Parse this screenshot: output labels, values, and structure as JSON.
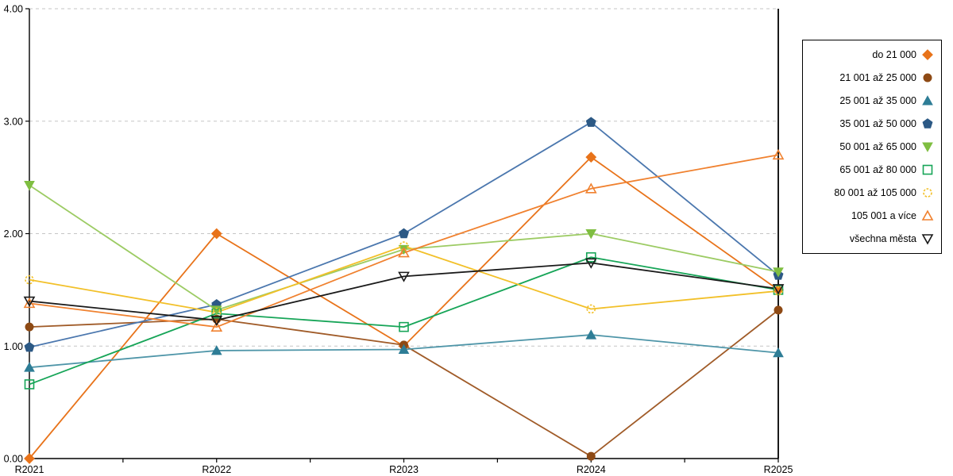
{
  "chart_data": {
    "type": "line",
    "title": "",
    "xlabel": "",
    "ylabel": "",
    "x_categories": [
      "R2021",
      "R2022",
      "R2023",
      "R2024",
      "R2025"
    ],
    "ylim": [
      0,
      4
    ],
    "ytick_labels": [
      "0.00",
      "1.00",
      "2.00",
      "3.00",
      "4.00"
    ],
    "grid": "horizontal-dashed",
    "grid_color": "#c6c6c6",
    "axis_color": "#000000",
    "legend_position": "right-outside",
    "series": [
      {
        "name": "do 21 000",
        "color": "#e8731a",
        "marker_color": "#e8731a",
        "marker": "diamond",
        "fill": true,
        "values": [
          0.0,
          2.0,
          1.0,
          2.68,
          1.5
        ]
      },
      {
        "name": "21 001 až 25 000",
        "color": "#a05b28",
        "marker_color": "#8e4a15",
        "marker": "circle",
        "fill": true,
        "values": [
          1.17,
          1.24,
          1.01,
          0.02,
          1.32
        ]
      },
      {
        "name": "25 001 až 35 000",
        "color": "#4e95a8",
        "marker_color": "#2e7d96",
        "marker": "triangle-up",
        "fill": true,
        "values": [
          0.81,
          0.96,
          0.97,
          1.1,
          0.94
        ]
      },
      {
        "name": "35 001 až 50 000",
        "color": "#4b77ae",
        "marker_color": "#2c5985",
        "marker": "pentagon",
        "fill": true,
        "values": [
          0.99,
          1.37,
          2.0,
          2.99,
          1.63
        ]
      },
      {
        "name": "50 001 až 65 000",
        "color": "#9ccb63",
        "marker_color": "#7fbe41",
        "marker": "triangle-down",
        "fill": true,
        "values": [
          2.43,
          1.32,
          1.86,
          2.0,
          1.66
        ]
      },
      {
        "name": "65 001 až 80 000",
        "color": "#17a558",
        "marker_color": "#17a558",
        "marker": "square",
        "fill": false,
        "values": [
          0.66,
          1.29,
          1.17,
          1.79,
          1.5
        ]
      },
      {
        "name": "80 001 až 105 000",
        "color": "#f2c029",
        "marker_color": "#f2c029",
        "marker": "circle",
        "fill": false,
        "dashed_marker": true,
        "values": [
          1.59,
          1.3,
          1.89,
          1.33,
          1.49
        ]
      },
      {
        "name": "105 001 a více",
        "color": "#f0812f",
        "marker_color": "#f0812f",
        "marker": "triangle-up",
        "fill": false,
        "values": [
          1.38,
          1.17,
          1.83,
          2.4,
          2.7
        ]
      },
      {
        "name": "všechna města",
        "color": "#1a1a1a",
        "marker_color": "#1a1a1a",
        "marker": "triangle-down",
        "fill": false,
        "values": [
          1.4,
          1.23,
          1.62,
          1.74,
          1.51
        ]
      }
    ]
  }
}
